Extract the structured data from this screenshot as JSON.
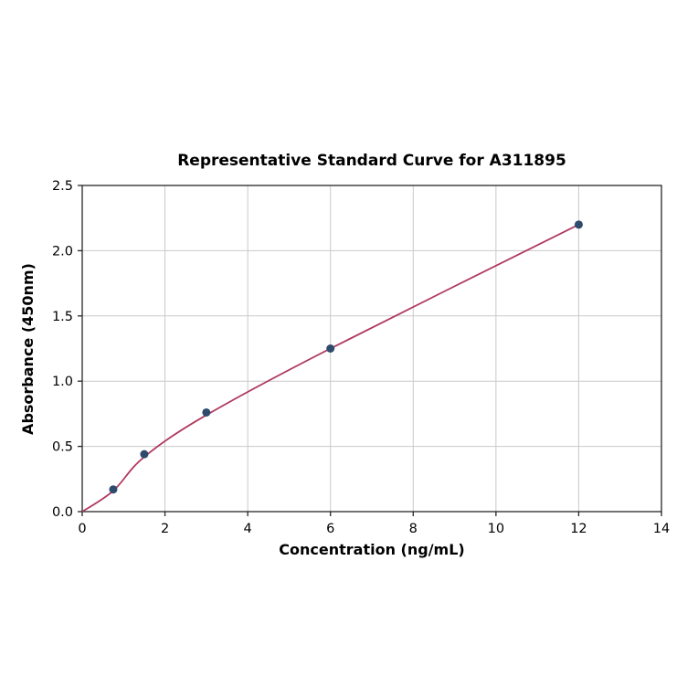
{
  "chart_data": {
    "type": "scatter",
    "title": "Representative Standard Curve for A311895",
    "xlabel": "Concentration (ng/mL)",
    "ylabel": "Absorbance (450nm)",
    "xlim": [
      0,
      14
    ],
    "ylim": [
      0.0,
      2.5
    ],
    "xticks": [
      0,
      2,
      4,
      6,
      8,
      10,
      12,
      14
    ],
    "xtick_labels": [
      "0",
      "2",
      "4",
      "6",
      "8",
      "10",
      "12",
      "14"
    ],
    "yticks": [
      0.0,
      0.5,
      1.0,
      1.5,
      2.0,
      2.5
    ],
    "ytick_labels": [
      "0.0",
      "0.5",
      "1.0",
      "1.5",
      "2.0",
      "2.5"
    ],
    "grid": true,
    "legend": false,
    "points": [
      {
        "x": 0.75,
        "y": 0.17
      },
      {
        "x": 1.5,
        "y": 0.44
      },
      {
        "x": 3,
        "y": 0.76
      },
      {
        "x": 6,
        "y": 1.25
      },
      {
        "x": 12,
        "y": 2.2
      }
    ],
    "curve_points": [
      {
        "x": 0,
        "y": 0.0
      },
      {
        "x": 0.75,
        "y": 0.16
      },
      {
        "x": 1.5,
        "y": 0.42
      },
      {
        "x": 3,
        "y": 0.74
      },
      {
        "x": 6,
        "y": 1.25
      },
      {
        "x": 12,
        "y": 2.2
      }
    ],
    "colors": {
      "curve": "#b03a5f",
      "points": "#2e4a6d",
      "grid": "#c9c9c9",
      "axis": "#262626",
      "text": "#000000"
    }
  }
}
